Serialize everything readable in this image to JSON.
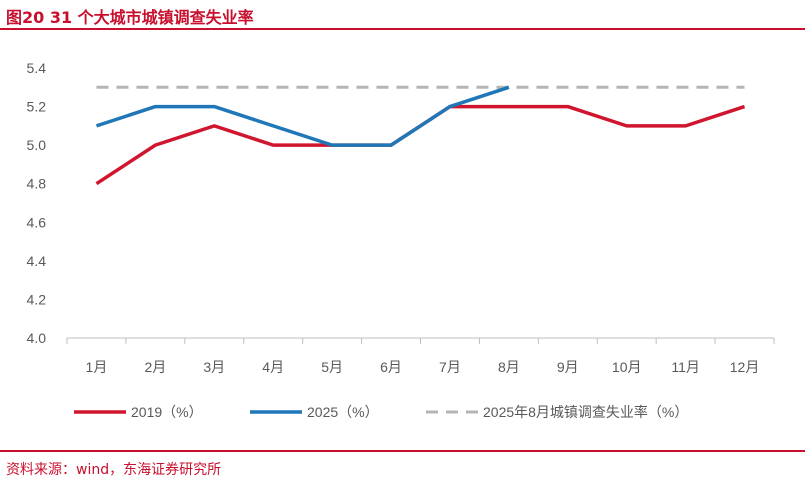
{
  "figure": {
    "title": "图20  31 个大城市城镇调查失业率",
    "source": "资料来源：wind，东海证券研究所"
  },
  "colors": {
    "accent": "#c8102e",
    "series_2019": "#d0152f",
    "series_2025": "#1f77b8",
    "reference": "#b5b5b5",
    "axis": "#bfbfbf",
    "text": "#595959"
  },
  "chart_data": {
    "type": "line",
    "title": "31 个大城市城镇调查失业率",
    "xlabel": "",
    "ylabel": "",
    "ylim": [
      4.0,
      5.4
    ],
    "yticks": [
      "4.0",
      "4.2",
      "4.4",
      "4.6",
      "4.8",
      "5.0",
      "5.2",
      "5.4"
    ],
    "grid": false,
    "legend_position": "bottom",
    "categories": [
      "1月",
      "2月",
      "3月",
      "4月",
      "5月",
      "6月",
      "7月",
      "8月",
      "9月",
      "10月",
      "11月",
      "12月"
    ],
    "series": [
      {
        "name": "2019（%）",
        "style": "solid",
        "color": "#d0152f",
        "values": [
          4.8,
          5.0,
          5.1,
          5.0,
          5.0,
          5.0,
          5.2,
          5.2,
          5.2,
          5.1,
          5.1,
          5.2
        ]
      },
      {
        "name": "2025（%）",
        "style": "solid",
        "color": "#1f77b8",
        "values": [
          5.1,
          5.2,
          5.2,
          5.1,
          5.0,
          5.0,
          5.2,
          5.3,
          null,
          null,
          null,
          null
        ]
      },
      {
        "name": "2025年8月城镇调查失业率（%）",
        "style": "dashed",
        "color": "#b5b5b5",
        "values": [
          5.3,
          5.3,
          5.3,
          5.3,
          5.3,
          5.3,
          5.3,
          5.3,
          5.3,
          5.3,
          5.3,
          5.3
        ]
      }
    ]
  }
}
